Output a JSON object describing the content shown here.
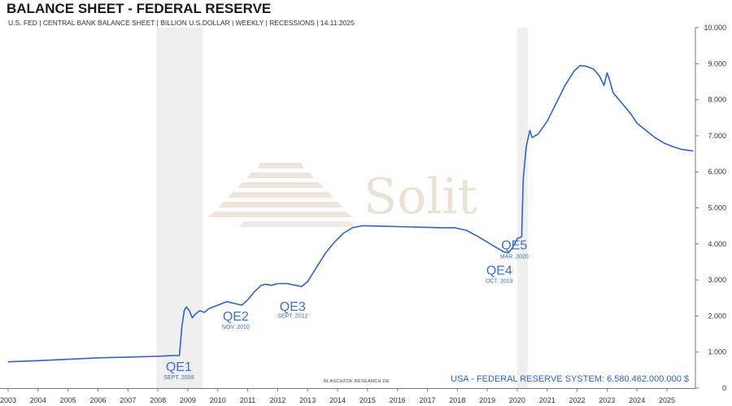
{
  "chart_data": {
    "type": "line",
    "title": "BALANCE SHEET - FEDERAL RESERVE",
    "subtitle": "U.S. FED | CENTRAL BANK BALANCE SHEET | BILLION U.S.DOLLAR | WEEKLY | RECESSIONS | 14.11.2025",
    "watermark": "Solit",
    "credit": "BLASCHZOK RESEARCH DE",
    "summary": "USA - FEDERAL RESERVE SYSTEM: 6.580.462.000.000 $",
    "line_color": "#2d62d6",
    "recession_color": "#efefef",
    "ylim": [
      0,
      10000
    ],
    "xlim": [
      2003.0,
      2025.95
    ],
    "y_ticks": [
      {
        "value": 0,
        "label": "0"
      },
      {
        "value": 1000,
        "label": "1.000"
      },
      {
        "value": 2000,
        "label": "2.000"
      },
      {
        "value": 3000,
        "label": "3.000"
      },
      {
        "value": 4000,
        "label": "4.000"
      },
      {
        "value": 5000,
        "label": "5.000"
      },
      {
        "value": 6000,
        "label": "6.000"
      },
      {
        "value": 7000,
        "label": "7.000"
      },
      {
        "value": 8000,
        "label": "8.000"
      },
      {
        "value": 9000,
        "label": "9.000"
      },
      {
        "value": 10000,
        "label": "10.000"
      }
    ],
    "x_ticks": [
      "2003",
      "2004",
      "2005",
      "2006",
      "2007",
      "2008",
      "2009",
      "2010",
      "2011",
      "2012",
      "2013",
      "2014",
      "2015",
      "2016",
      "2017",
      "2018",
      "2019",
      "2020",
      "2021",
      "2022",
      "2023",
      "2024",
      "2025"
    ],
    "recessions": [
      {
        "start": 2007.95,
        "end": 2009.5
      },
      {
        "start": 2020.0,
        "end": 2020.35
      }
    ],
    "series": [
      {
        "name": "USA - Federal Reserve System",
        "x": [
          2003.0,
          2004.0,
          2005.0,
          2006.0,
          2007.0,
          2007.9,
          2008.2,
          2008.45,
          2008.72,
          2008.8,
          2008.88,
          2008.95,
          2009.05,
          2009.15,
          2009.25,
          2009.4,
          2009.55,
          2009.7,
          2009.85,
          2010.0,
          2010.3,
          2010.55,
          2010.8,
          2011.0,
          2011.2,
          2011.45,
          2011.6,
          2011.8,
          2012.0,
          2012.3,
          2012.6,
          2012.8,
          2013.0,
          2013.3,
          2013.6,
          2013.9,
          2014.2,
          2014.5,
          2014.8,
          2015.0,
          2015.5,
          2016.0,
          2016.5,
          2017.0,
          2017.5,
          2017.9,
          2018.3,
          2018.7,
          2019.0,
          2019.3,
          2019.55,
          2019.7,
          2019.85,
          2020.0,
          2020.15,
          2020.2,
          2020.3,
          2020.42,
          2020.5,
          2020.7,
          2021.0,
          2021.3,
          2021.6,
          2021.9,
          2022.1,
          2022.3,
          2022.55,
          2022.75,
          2022.9,
          2023.0,
          2023.1,
          2023.2,
          2023.5,
          2023.8,
          2024.0,
          2024.3,
          2024.6,
          2024.9,
          2025.2,
          2025.5,
          2025.88
        ],
        "values": [
          730,
          760,
          800,
          840,
          860,
          880,
          890,
          900,
          905,
          1700,
          2150,
          2250,
          2150,
          1950,
          2050,
          2150,
          2100,
          2200,
          2250,
          2300,
          2400,
          2350,
          2300,
          2450,
          2650,
          2850,
          2880,
          2850,
          2900,
          2900,
          2850,
          2820,
          2950,
          3350,
          3750,
          4050,
          4300,
          4450,
          4500,
          4500,
          4490,
          4480,
          4470,
          4460,
          4450,
          4450,
          4380,
          4200,
          4050,
          3900,
          3780,
          3750,
          3900,
          4150,
          4200,
          5800,
          6700,
          7150,
          6950,
          7050,
          7400,
          7900,
          8400,
          8800,
          8950,
          8930,
          8850,
          8650,
          8400,
          8750,
          8500,
          8200,
          7900,
          7600,
          7350,
          7150,
          6950,
          6800,
          6700,
          6620,
          6580
        ]
      }
    ],
    "annotations": [
      {
        "label": "QE1",
        "sublabel": "SEPT. 2008",
        "x": 2008.7,
        "y": 470,
        "sub_y": 250
      },
      {
        "label": "QE2",
        "sublabel": "NOV. 2010",
        "x": 2010.6,
        "y": 1870,
        "sub_y": 1650
      },
      {
        "label": "QE3",
        "sublabel": "SEPT. 2012",
        "x": 2012.5,
        "y": 2150,
        "sub_y": 1950
      },
      {
        "label": "QE4",
        "sublabel": "OCT. 2019",
        "x": 2019.4,
        "y": 3150,
        "sub_y": 2920
      },
      {
        "label": "QE5",
        "sublabel": "MAR. 2020",
        "x": 2019.9,
        "y": 3850,
        "sub_y": 3600
      }
    ]
  }
}
